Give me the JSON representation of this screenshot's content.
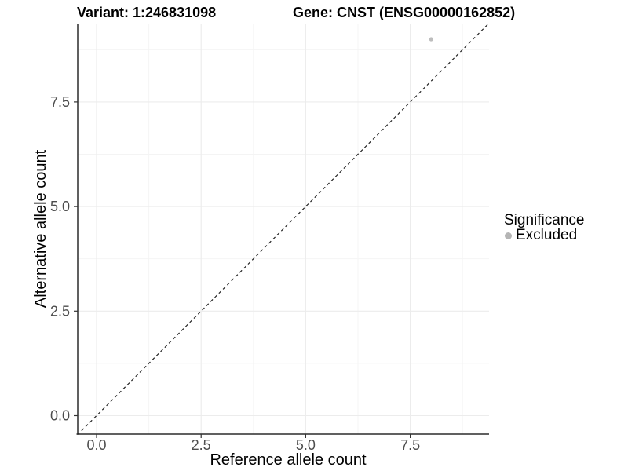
{
  "figure": {
    "title_variant": "Variant: 1:246831098",
    "title_gene": "Gene: CNST (ENSG00000162852)"
  },
  "chart_data": {
    "type": "scatter",
    "title_left": "Variant: 1:246831098",
    "title_right": "Gene: CNST (ENSG00000162852)",
    "xlabel": "Reference allele count",
    "ylabel": "Alternative allele count",
    "xlim": [
      -0.46,
      9.38
    ],
    "ylim": [
      -0.46,
      9.37
    ],
    "x_tick_values": [
      0,
      2.5,
      5,
      7.5
    ],
    "x_tick_labels": [
      "0.0",
      "2.5",
      "5.0",
      "7.5"
    ],
    "y_tick_values": [
      0,
      2.5,
      5,
      7.5
    ],
    "y_tick_labels": [
      "0.0",
      "2.5",
      "5.0",
      "7.5"
    ],
    "grid": {
      "major_values": [
        0,
        2.5,
        5,
        7.5
      ],
      "minor_values": [
        1.25,
        3.75,
        6.25,
        8.75
      ],
      "major_color": "#ececec",
      "minor_color": "#f4f4f4",
      "grid_on": true
    },
    "reference_line": {
      "kind": "identity-diagonal",
      "equation": "y = x",
      "style": "dashed",
      "color": "#222222"
    },
    "points": [
      {
        "x": 8,
        "y": 9,
        "series": "Excluded",
        "color": "#bdbdbd",
        "radius": 2.6
      }
    ],
    "legend": {
      "title": "Significance",
      "position": "right",
      "items": [
        {
          "label": "Excluded",
          "marker": "circle",
          "color": "#b5b5b5"
        }
      ]
    },
    "axis_style": {
      "line_color": "#2b2b2b",
      "tick_color": "#333333",
      "tick_label_color": "#4d4d4d",
      "title_color": "#000000"
    }
  }
}
